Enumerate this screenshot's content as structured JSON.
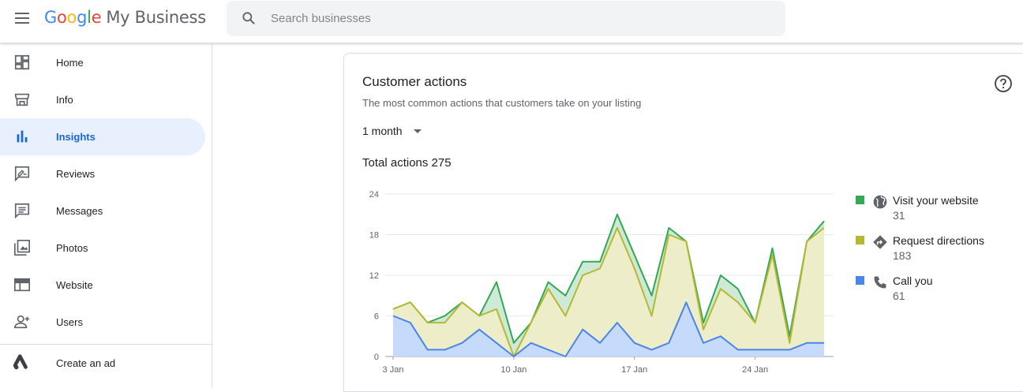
{
  "app": {
    "logo_google": [
      "G",
      "o",
      "o",
      "g",
      "l",
      "e"
    ],
    "logo_product": "My Business"
  },
  "search": {
    "placeholder": "Search businesses"
  },
  "sidebar": {
    "items": [
      {
        "label": "Home",
        "icon": "dashboard-icon"
      },
      {
        "label": "Info",
        "icon": "storefront-icon"
      },
      {
        "label": "Insights",
        "icon": "bar-chart-icon",
        "active": true
      },
      {
        "label": "Reviews",
        "icon": "rate-review-icon"
      },
      {
        "label": "Messages",
        "icon": "chat-icon"
      },
      {
        "label": "Photos",
        "icon": "photo-library-icon"
      },
      {
        "label": "Website",
        "icon": "web-icon"
      },
      {
        "label": "Users",
        "icon": "person-add-icon"
      }
    ],
    "extra": {
      "label": "Create an ad",
      "icon": "google-ads-icon"
    }
  },
  "card": {
    "title": "Customer actions",
    "subtitle": "The most common actions that customers take on your listing",
    "period": "1 month",
    "total_label": "Total actions 275"
  },
  "legend": [
    {
      "label": "Visit your website",
      "value": "31",
      "color": "#34a853",
      "icon": "globe-icon"
    },
    {
      "label": "Request directions",
      "value": "183",
      "color": "#b5b833",
      "icon": "directions-icon"
    },
    {
      "label": "Call you",
      "value": "61",
      "color": "#4a86e8",
      "icon": "phone-icon"
    }
  ],
  "colors": {
    "accent": "#1967d2",
    "active_bg": "#e8f0fe",
    "website": "#34a853",
    "directions": "#b5b833",
    "calls": "#4a86e8"
  },
  "chart_data": {
    "type": "area",
    "stacked": true,
    "ylim": [
      0,
      24
    ],
    "yticks": [
      0,
      6,
      12,
      18,
      24
    ],
    "x": [
      "3 Jan",
      "4 Jan",
      "5 Jan",
      "6 Jan",
      "7 Jan",
      "8 Jan",
      "9 Jan",
      "10 Jan",
      "11 Jan",
      "12 Jan",
      "13 Jan",
      "14 Jan",
      "15 Jan",
      "16 Jan",
      "17 Jan",
      "18 Jan",
      "19 Jan",
      "20 Jan",
      "21 Jan",
      "22 Jan",
      "23 Jan",
      "24 Jan",
      "25 Jan",
      "26 Jan",
      "27 Jan",
      "28 Jan"
    ],
    "xtick_labels": [
      "3 Jan",
      "10 Jan",
      "17 Jan",
      "24 Jan"
    ],
    "series": [
      {
        "name": "Call you",
        "values": [
          6,
          5,
          1,
          1,
          2,
          4,
          2,
          0,
          2,
          1,
          0,
          4,
          2,
          5,
          2,
          1,
          2,
          8,
          2,
          3,
          1,
          1,
          1,
          1,
          2,
          2
        ]
      },
      {
        "name": "Request directions",
        "values": [
          7,
          8,
          5,
          5,
          8,
          6,
          7,
          0,
          5,
          10,
          6,
          12,
          13,
          19,
          13,
          6,
          18,
          17,
          4,
          10,
          8,
          5,
          15,
          2,
          17,
          19
        ]
      },
      {
        "name": "Visit your website",
        "values": [
          7,
          8,
          5,
          6,
          8,
          6,
          11,
          2,
          5,
          11,
          9,
          14,
          14,
          21,
          15,
          9,
          19,
          17,
          5,
          12,
          10,
          5,
          16,
          3,
          17,
          20
        ]
      }
    ],
    "grid": true,
    "legend_position": "right"
  }
}
